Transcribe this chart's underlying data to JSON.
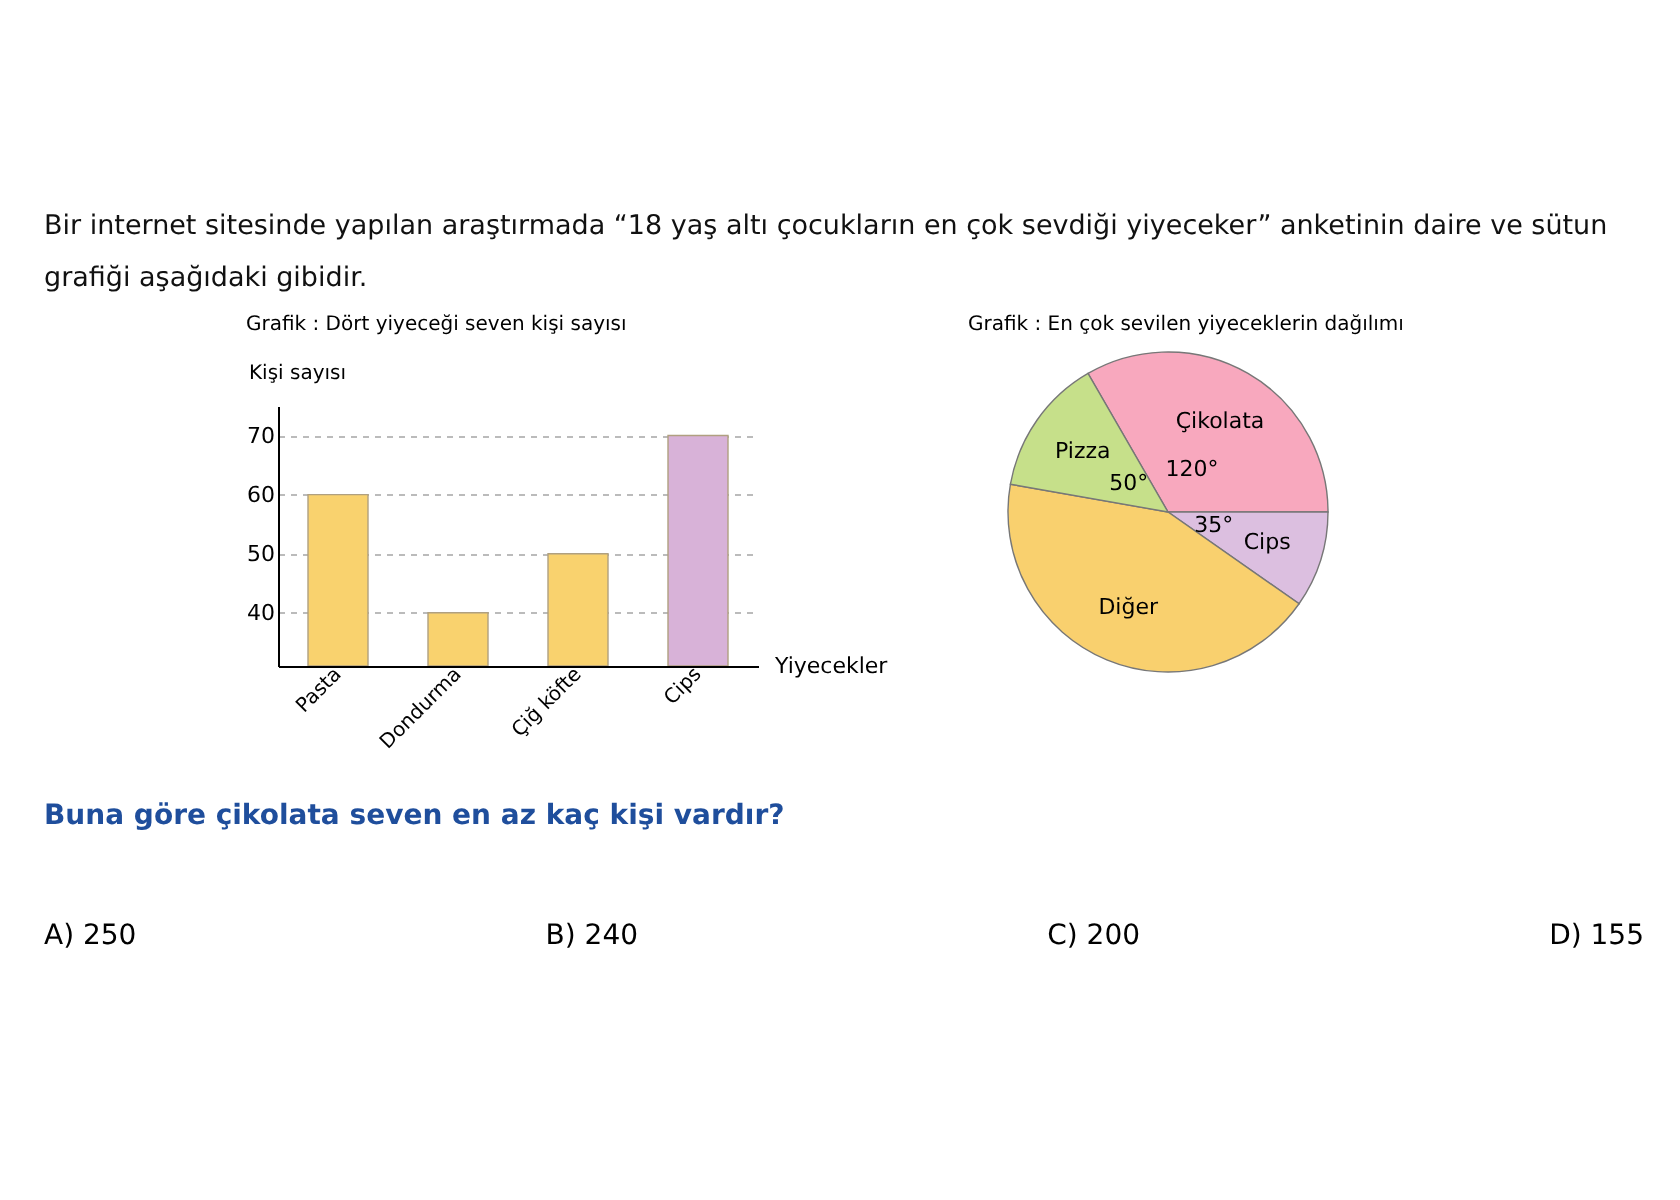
{
  "chart_data": [
    {
      "type": "bar",
      "title": "Grafik : Dört yiyeceği seven kişi sayısı",
      "xlabel": "Yiyecekler",
      "ylabel": "Kişi sayısı",
      "categories": [
        "Pasta",
        "Dondurma",
        "Çiğ köfte",
        "Cips"
      ],
      "values": [
        60,
        40,
        50,
        70
      ],
      "colors": [
        "#f9d26e",
        "#f9d26e",
        "#f9d26e",
        "#d8b2d8"
      ],
      "ylim": [
        31,
        75
      ],
      "yticks": [
        40,
        50,
        60,
        70
      ],
      "grid": "y",
      "annotations": [
        "Bir internet sitesinde yapılan araştırmada “18 yaş altı çocukların en çok sevdiği yiyeceker” anketinin daire ve sütun grafiği aşağıdaki gibidir.",
        "Buna göre çikolata seven en az kaç kişi vardır?",
        "A) 250",
        "B) 240",
        "C) 200",
        "D) 155"
      ]
    },
    {
      "type": "pie",
      "title": "Grafik : En çok sevilen yiyeceklerin dağılımı",
      "categories": [
        "Çikolata",
        "Cips",
        "Diğer",
        "Pizza"
      ],
      "values": [
        120,
        35,
        155,
        50
      ],
      "colors": [
        "#f8a8be",
        "#dcbfe0",
        "#f9d06e",
        "#c6e08a"
      ],
      "value_labels": [
        "120°",
        "35°",
        null,
        "50°"
      ]
    }
  ]
}
